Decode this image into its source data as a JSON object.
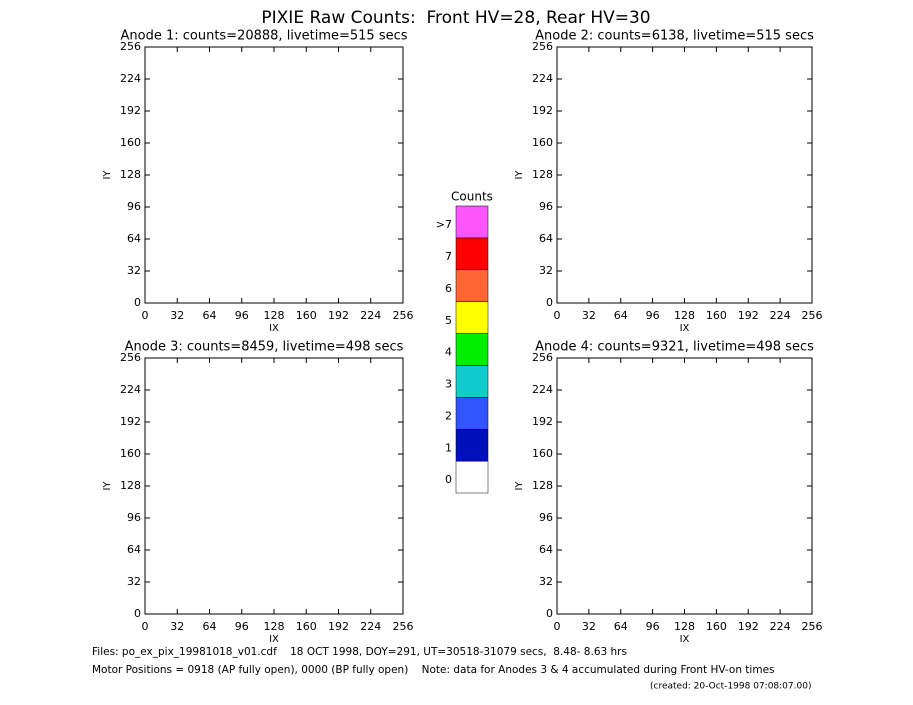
{
  "title": "PIXIE Raw Counts:  Front HV=28, Rear HV=30",
  "chart_data": [
    {
      "type": "heatmap",
      "title": "Anode 1: counts=20888, livetime=515 secs",
      "x_label": "IX",
      "y_label": "IY",
      "xlim": [
        0,
        256
      ],
      "ylim": [
        0,
        256
      ],
      "xticks": [
        0,
        32,
        64,
        96,
        128,
        160,
        192,
        224,
        256
      ],
      "yticks": [
        0,
        32,
        64,
        96,
        128,
        160,
        192,
        224,
        256
      ]
    },
    {
      "type": "heatmap",
      "title": "Anode 2: counts=6138, livetime=515 secs",
      "x_label": "IX",
      "y_label": "IY",
      "xlim": [
        0,
        256
      ],
      "ylim": [
        0,
        256
      ],
      "xticks": [
        0,
        32,
        64,
        96,
        128,
        160,
        192,
        224,
        256
      ],
      "yticks": [
        0,
        32,
        64,
        96,
        128,
        160,
        192,
        224,
        256
      ]
    },
    {
      "type": "heatmap",
      "title": "Anode 3: counts=8459, livetime=498 secs",
      "x_label": "IX",
      "y_label": "IY",
      "xlim": [
        0,
        256
      ],
      "ylim": [
        0,
        256
      ],
      "xticks": [
        0,
        32,
        64,
        96,
        128,
        160,
        192,
        224,
        256
      ],
      "yticks": [
        0,
        32,
        64,
        96,
        128,
        160,
        192,
        224,
        256
      ]
    },
    {
      "type": "heatmap",
      "title": "Anode 4: counts=9321, livetime=498 secs",
      "x_label": "IX",
      "y_label": "IY",
      "xlim": [
        0,
        256
      ],
      "ylim": [
        0,
        256
      ],
      "xticks": [
        0,
        32,
        64,
        96,
        128,
        160,
        192,
        224,
        256
      ],
      "yticks": [
        0,
        32,
        64,
        96,
        128,
        160,
        192,
        224,
        256
      ]
    }
  ],
  "colorbar": {
    "title": "Counts",
    "levels": [
      {
        "label": "0",
        "color": "#ffffff"
      },
      {
        "label": "1",
        "color": "#0011bb"
      },
      {
        "label": "2",
        "color": "#3355ff"
      },
      {
        "label": "3",
        "color": "#11cccc"
      },
      {
        "label": "4",
        "color": "#00ee00"
      },
      {
        "label": "5",
        "color": "#ffff00"
      },
      {
        "label": "6",
        "color": "#ff6633"
      },
      {
        "label": "7",
        "color": "#ff0000"
      },
      {
        "label": ">7",
        "color": "#ff55ff"
      }
    ]
  },
  "footer": [
    "Files: po_ex_pix_19981018_v01.cdf    18 OCT 1998, DOY=291, UT=30518-31079 secs,  8.48- 8.63 hrs",
    "Motor Positions = 0918 (AP fully open), 0000 (BP fully open)    Note: data for Anodes 3 & 4 accumulated during Front HV-on times",
    "(created: 20-Oct-1998 07:08:07.00)"
  ]
}
